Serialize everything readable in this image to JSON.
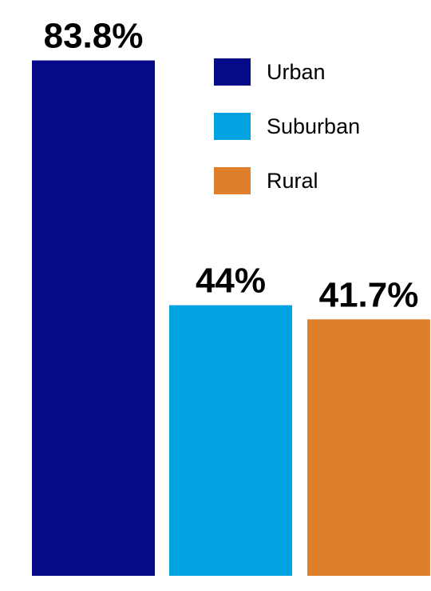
{
  "chart_data": {
    "type": "bar",
    "categories": [
      "Urban",
      "Suburban",
      "Rural"
    ],
    "values": [
      83.8,
      44,
      41.7
    ],
    "data_labels": [
      "83.8%",
      "44%",
      "41.7%"
    ],
    "colors": [
      "#050a87",
      "#00a3e0",
      "#e07f2b"
    ],
    "legend": [
      "Urban",
      "Suburban",
      "Rural"
    ],
    "legend_position": "top-right",
    "ylim": [
      0,
      100
    ],
    "grid": false
  }
}
